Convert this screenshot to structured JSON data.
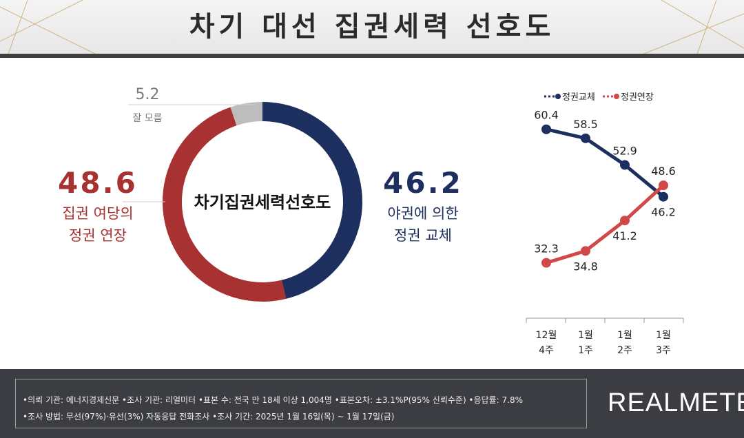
{
  "header": {
    "title": "차기 대선 집권세력 선호도"
  },
  "colors": {
    "blue": "#1d2f5e",
    "red": "#a83232",
    "gray": "#bdbdbd",
    "footer_bg": "#3b3d42"
  },
  "chart_data": [
    {
      "type": "pie",
      "title": "차기집권세력선호도",
      "slices": [
        {
          "value": 46.2,
          "label": "46.2",
          "name_lines": [
            "야권에 의한",
            "정권 교체"
          ],
          "color": "#1d2f5e"
        },
        {
          "value": 48.6,
          "label": "48.6",
          "name_lines": [
            "집권 여당의",
            "정권 연장"
          ],
          "color": "#a83232"
        },
        {
          "value": 5.2,
          "label": "5.2",
          "name_lines": [
            "잘 모름"
          ],
          "color": "#bdbdbd"
        }
      ]
    },
    {
      "type": "line",
      "categories": [
        [
          "12월",
          "4주"
        ],
        [
          "1월",
          "1주"
        ],
        [
          "1월",
          "2주"
        ],
        [
          "1월",
          "3주"
        ]
      ],
      "ylim": [
        25,
        65
      ],
      "legend": "top",
      "series": [
        {
          "name": "정권교체",
          "color": "#1d2f5e",
          "values": [
            60.4,
            58.5,
            52.9,
            46.2
          ],
          "labels": [
            "60.4",
            "58.5",
            "52.9",
            "46.2"
          ],
          "label_pos": [
            "above",
            "above",
            "above",
            "below"
          ]
        },
        {
          "name": "정권연장",
          "color": "#d14848",
          "values": [
            32.3,
            34.8,
            41.2,
            48.6
          ],
          "labels": [
            "32.3",
            "34.8",
            "41.2",
            "48.6"
          ],
          "label_pos": [
            "above",
            "below",
            "below",
            "above"
          ]
        }
      ]
    }
  ],
  "footer": {
    "line1": "•의뢰 기관: 에너지경제신문 •조사 기관: 리얼미터 •표본 수: 전국 만 18세 이상 1,004명 •표본오차: ±3.1%P(95% 신뢰수준) •응답률: 7.8%",
    "line2": "•조사 방법: 무선(97%)·유선(3%) 자동응답 전화조사 •조사 기간: 2025년 1월 16일(목) ~ 1월 17일(금)",
    "brand": "REALMETER"
  }
}
